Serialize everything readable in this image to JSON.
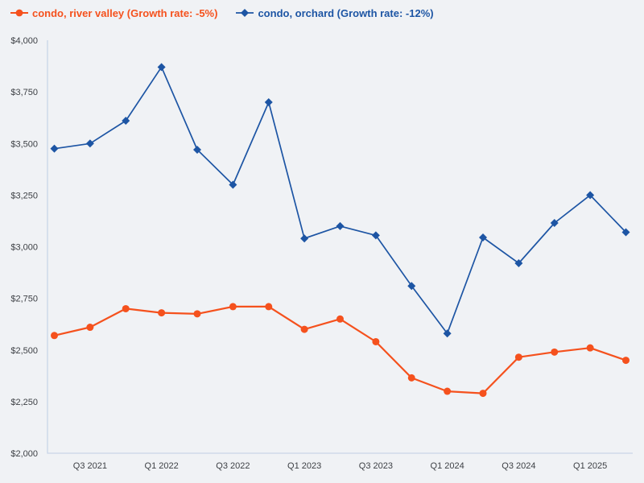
{
  "chart_data": {
    "type": "line",
    "categories": [
      "Q2 2021",
      "Q3 2021",
      "Q4 2021",
      "Q1 2022",
      "Q2 2022",
      "Q3 2022",
      "Q4 2022",
      "Q1 2023",
      "Q2 2023",
      "Q3 2023",
      "Q4 2023",
      "Q1 2024",
      "Q2 2024",
      "Q3 2024",
      "Q4 2024",
      "Q1 2025",
      "Q2 2025"
    ],
    "x_tick_labels": [
      "Q3 2021",
      "Q1 2022",
      "Q3 2022",
      "Q1 2023",
      "Q3 2023",
      "Q1 2024",
      "Q3 2024",
      "Q1 2025"
    ],
    "x_tick_indices": [
      1,
      3,
      5,
      7,
      9,
      11,
      13,
      15
    ],
    "ylabel": "",
    "xlabel": "",
    "ylim": [
      2000,
      4000
    ],
    "y_tick_step": 250,
    "y_tick_labels": [
      "$2,000",
      "$2,250",
      "$2,500",
      "$2,750",
      "$3,000",
      "$3,250",
      "$3,500",
      "$3,750",
      "$4,000"
    ],
    "grid": false,
    "legend_position": "top-left",
    "background_color": "#f0f2f5",
    "axis_color": "#c9d5e8",
    "tick_label_color": "#3d4045",
    "series": [
      {
        "key": "river-valley",
        "name": "condo, river valley",
        "growth_rate": "-5%",
        "legend_label": "condo, river valley (Growth rate: -5%)",
        "color": "#f5511d",
        "marker": "circle",
        "line_width": 2.2,
        "values": [
          2570,
          2610,
          2700,
          2680,
          2675,
          2710,
          2710,
          2600,
          2650,
          2540,
          2365,
          2300,
          2290,
          2465,
          2490,
          2510,
          2450
        ]
      },
      {
        "key": "orchard",
        "name": "condo, orchard",
        "growth_rate": "-12%",
        "legend_label": "condo, orchard (Growth rate: -12%)",
        "color": "#1d55a4",
        "marker": "diamond",
        "line_width": 1.7,
        "values": [
          3475,
          3500,
          3610,
          3870,
          3470,
          3300,
          3700,
          3040,
          3100,
          3055,
          2810,
          2580,
          3045,
          2920,
          3115,
          3250,
          3070
        ]
      }
    ]
  }
}
